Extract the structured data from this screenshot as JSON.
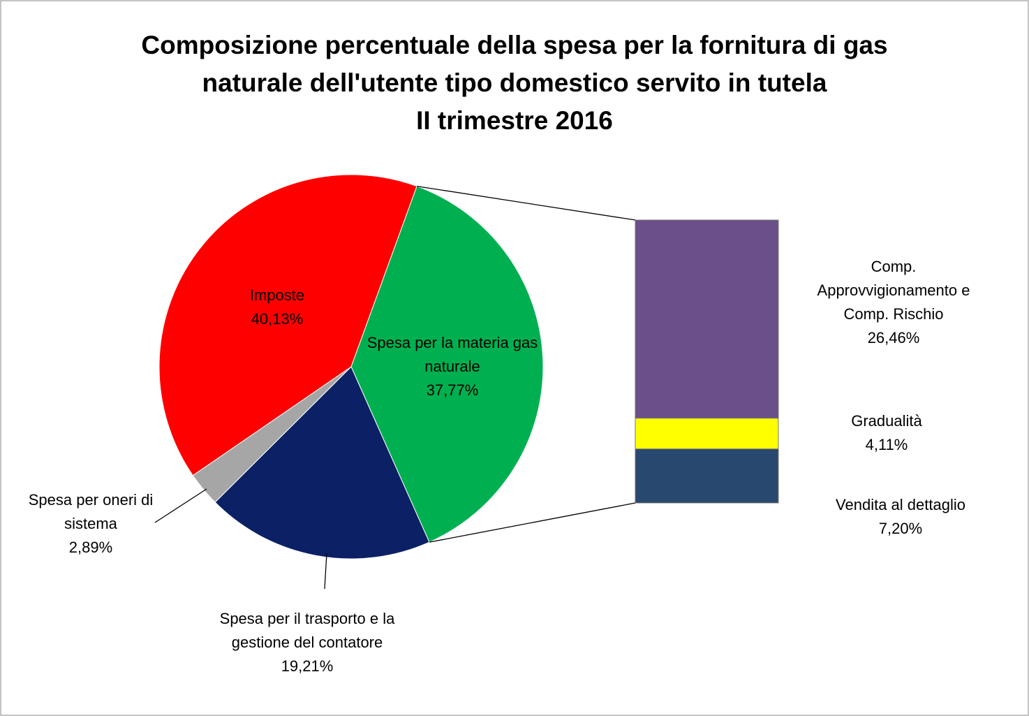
{
  "chart_data": {
    "type": "pie-of-bar",
    "title": "Composizione percentuale della spesa per la fornitura di gas naturale dell'utente tipo domestico servito in tutela",
    "subtitle": "II trimestre 2016",
    "categories": [
      "Imposte",
      "Spesa per la materia gas naturale",
      "Spesa per il trasporto e la gestione del contatore",
      "Spesa per oneri di sistema"
    ],
    "values": [
      40.13,
      37.77,
      19.21,
      2.89
    ],
    "value_labels": [
      "40,13%",
      "37,77%",
      "19,21%",
      "2,89%"
    ],
    "colors": [
      "#ff0000",
      "#00b050",
      "#0b2065",
      "#a6a6a6"
    ],
    "breakdown": {
      "of": 1,
      "categories": [
        "Comp. Approvvigionamento e  Comp. Rischio",
        "Gradualità",
        "Vendita al dettaglio"
      ],
      "values": [
        26.46,
        4.11,
        7.2
      ],
      "value_labels": [
        "26,46%",
        "4,11%",
        "7,20%"
      ],
      "colors": [
        "#6a4f8a",
        "#ffff00",
        "#294870"
      ]
    }
  }
}
